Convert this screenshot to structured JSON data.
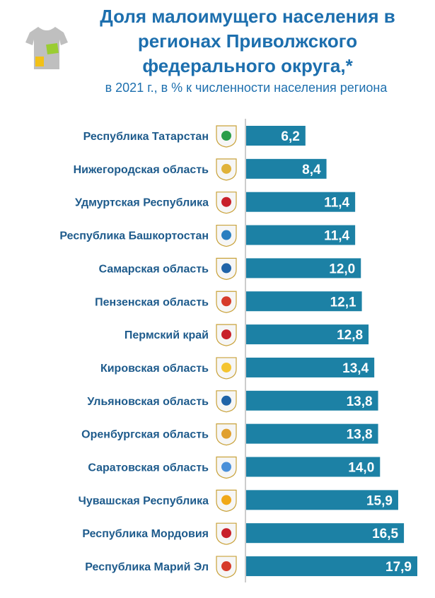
{
  "title": "Доля малоимущего населения в регионах Приволжского федерального округа,*",
  "subtitle": "в 2021 г., в % к численности населения региона",
  "colors": {
    "bar": "#1c81a5",
    "title": "#1d6fae",
    "label": "#1e5b8c"
  },
  "icons": {
    "decoration": "shirt-icon",
    "region": "coat-of-arms-icon"
  },
  "chart_data": {
    "type": "bar",
    "orientation": "horizontal",
    "title": "Доля малоимущего населения в регионах Приволжского федерального округа,*",
    "subtitle": "в 2021 г., в % к численности населения региона",
    "categories": [
      "Республика Татарстан",
      "Нижегородская область",
      "Удмуртская Республика",
      "Республика Башкортостан",
      "Самарская область",
      "Пензенская область",
      "Пермский край",
      "Кировская область",
      "Ульяновская область",
      "Оренбургская область",
      "Саратовская область",
      "Чувашская Республика",
      "Республика Мордовия",
      "Республика Марий Эл"
    ],
    "values": [
      6.2,
      8.4,
      11.4,
      11.4,
      12.0,
      12.1,
      12.8,
      13.4,
      13.8,
      13.8,
      14.0,
      15.9,
      16.5,
      17.9
    ],
    "value_labels": [
      "6,2",
      "8,4",
      "11,4",
      "11,4",
      "12,0",
      "12,1",
      "12,8",
      "13,4",
      "13,8",
      "13,8",
      "14,0",
      "15,9",
      "16,5",
      "17,9"
    ],
    "xlim": [
      0,
      17.9
    ],
    "grid": false,
    "legend": "none"
  }
}
